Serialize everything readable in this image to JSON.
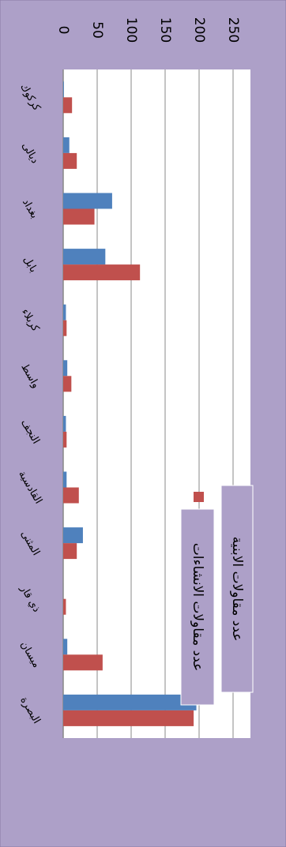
{
  "chart_data": {
    "type": "bar",
    "orientation": "horizontal",
    "categories": [
      "كركوك",
      "ديالى",
      "بغداد",
      "بابل",
      "كربلاء",
      "واسط",
      "النجف",
      "القادسية",
      "المثنى",
      "ذي قار",
      "ميسان",
      "البصرة"
    ],
    "series": [
      {
        "name": "عدد مقاولات الابنية",
        "color": "#4f81bd",
        "values": [
          1,
          9,
          72,
          62,
          4,
          6,
          4,
          5,
          29,
          0,
          6,
          196
        ]
      },
      {
        "name": "عدد مقاولات الانشاءات",
        "color": "#c0504d",
        "values": [
          13,
          20,
          46,
          113,
          5,
          12,
          5,
          23,
          20,
          4,
          58,
          192
        ]
      }
    ],
    "axis": {
      "ticks": [
        0,
        50,
        100,
        150,
        200,
        250
      ],
      "range": [
        0,
        250
      ]
    },
    "gridlines": true,
    "legend_position": "right",
    "colors": {
      "background": "#ada0c8",
      "plot_area": "#ffffff",
      "gridline": "#888888",
      "axis": "#888888"
    },
    "title": ""
  }
}
